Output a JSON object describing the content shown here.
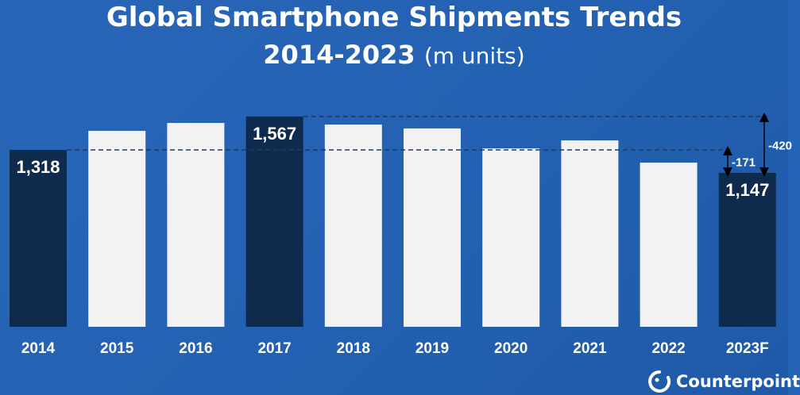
{
  "chart_data": {
    "type": "bar",
    "title": "Global Smartphone Shipments Trends",
    "subtitle_years": "2014-2023",
    "subtitle_units": "(m units)",
    "categories": [
      "2014",
      "2015",
      "2016",
      "2017",
      "2018",
      "2019",
      "2020",
      "2021",
      "2022",
      "2023F"
    ],
    "values": [
      1318,
      1460,
      1519,
      1567,
      1507,
      1478,
      1329,
      1389,
      1223,
      1147
    ],
    "highlighted": [
      true,
      false,
      false,
      true,
      false,
      false,
      false,
      false,
      false,
      true
    ],
    "data_labels": {
      "2014": "1,318",
      "2017": "1,567",
      "2023F": "1,147"
    },
    "annotations": [
      {
        "from": "2014",
        "to": "2023F",
        "text": "-171"
      },
      {
        "from": "2017",
        "to": "2023F",
        "text": "-420"
      }
    ],
    "ylim": [
      0,
      1600
    ],
    "grid": false,
    "colors": {
      "background": "#2563b4",
      "highlight": "#0e2a4d",
      "normal": "#f2f2f2"
    }
  },
  "brand": "Counterpoint"
}
